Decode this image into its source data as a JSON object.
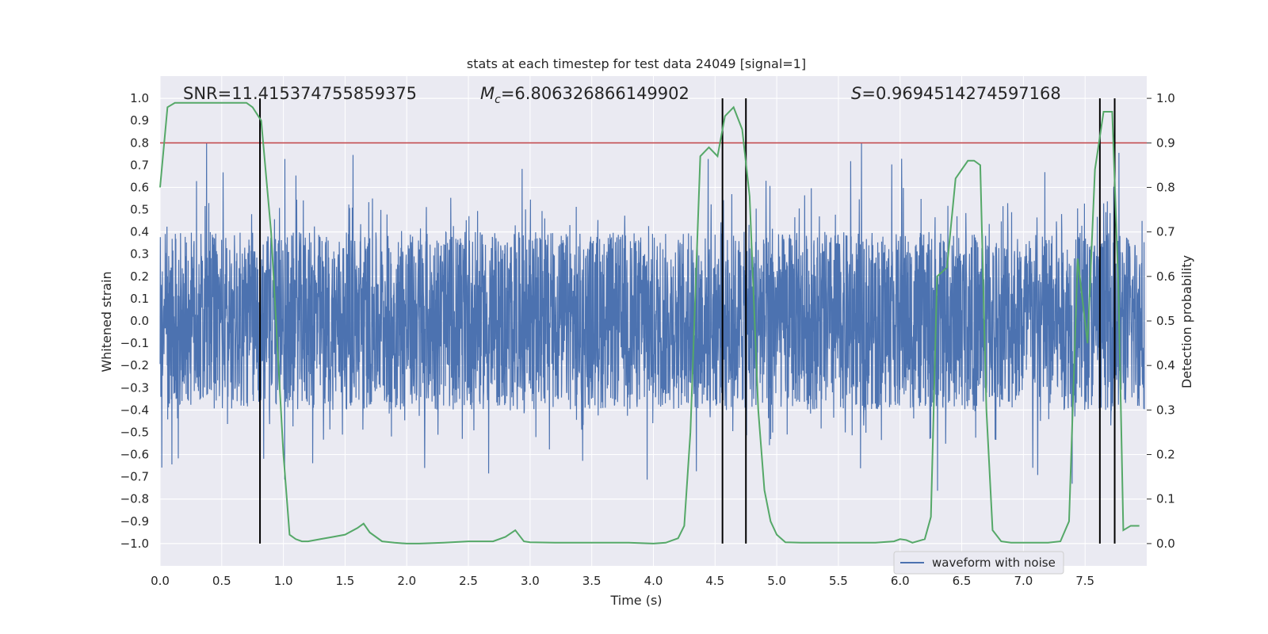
{
  "chart_data": {
    "type": "line",
    "title": "stats at each timestep for test data 24049 [signal=1]",
    "xlabel": "Time (s)",
    "ylabel": "Whitened strain",
    "ylabel_right": "Detection probability",
    "xlim": [
      0.0,
      8.0
    ],
    "ylim": [
      -1.1,
      1.1
    ],
    "ylim_right": [
      -0.05,
      1.05
    ],
    "xticks": [
      "0.0",
      "0.5",
      "1.0",
      "1.5",
      "2.0",
      "2.5",
      "3.0",
      "3.5",
      "4.0",
      "4.5",
      "5.0",
      "5.5",
      "6.0",
      "6.5",
      "7.0",
      "7.5"
    ],
    "yticks": [
      "1.0",
      "0.9",
      "0.8",
      "0.7",
      "0.6",
      "0.5",
      "0.4",
      "0.3",
      "0.2",
      "0.1",
      "0.0",
      "−0.1",
      "−0.2",
      "−0.3",
      "−0.4",
      "−0.5",
      "−0.6",
      "−0.7",
      "−0.8",
      "−0.9",
      "−1.0"
    ],
    "yticks_right": [
      "1.0",
      "0.9",
      "0.8",
      "0.7",
      "0.6",
      "0.5",
      "0.4",
      "0.3",
      "0.2",
      "0.1",
      "0.0"
    ],
    "grid": true,
    "legend": {
      "position": "lower-right",
      "entries": [
        "waveform with noise"
      ]
    },
    "annotations": {
      "snr": "SNR=11.415374755859375",
      "mc_symbol": "M",
      "mc_sub": "c",
      "mc_value": "=6.806326866149902",
      "s_symbol": "S",
      "s_value": "=0.9694514274597168"
    },
    "threshold_right": 0.9,
    "vertical_lines_x": [
      0.81,
      4.56,
      4.75,
      7.62,
      7.74
    ],
    "series": [
      {
        "name": "waveform with noise",
        "color": "#4c72b0",
        "kind": "noise",
        "y_range": [
          -1.0,
          1.0
        ],
        "typical_band": [
          -0.4,
          0.4
        ]
      },
      {
        "kind": "probability",
        "axis": "right",
        "color": "#55a868",
        "x": [
          0.0,
          0.06,
          0.12,
          0.2,
          0.3,
          0.4,
          0.5,
          0.6,
          0.7,
          0.75,
          0.82,
          0.9,
          1.0,
          1.05,
          1.1,
          1.15,
          1.2,
          1.3,
          1.4,
          1.5,
          1.6,
          1.65,
          1.7,
          1.8,
          1.9,
          2.0,
          2.1,
          2.3,
          2.5,
          2.7,
          2.8,
          2.88,
          2.95,
          3.0,
          3.2,
          3.4,
          3.6,
          3.8,
          4.0,
          4.1,
          4.2,
          4.25,
          4.3,
          4.38,
          4.45,
          4.52,
          4.58,
          4.65,
          4.72,
          4.78,
          4.85,
          4.9,
          4.95,
          5.0,
          5.07,
          5.2,
          5.4,
          5.6,
          5.8,
          5.95,
          6.0,
          6.05,
          6.1,
          6.2,
          6.25,
          6.3,
          6.38,
          6.45,
          6.5,
          6.55,
          6.6,
          6.65,
          6.7,
          6.75,
          6.82,
          6.9,
          7.0,
          7.2,
          7.3,
          7.37,
          7.44,
          7.52,
          7.58,
          7.65,
          7.72,
          7.77,
          7.81,
          7.87,
          7.94
        ],
        "y": [
          0.8,
          0.98,
          0.99,
          0.99,
          0.99,
          0.99,
          0.99,
          0.99,
          0.99,
          0.98,
          0.95,
          0.7,
          0.2,
          0.02,
          0.01,
          0.005,
          0.005,
          0.01,
          0.015,
          0.02,
          0.035,
          0.045,
          0.025,
          0.005,
          0.002,
          0.0,
          0.0,
          0.002,
          0.005,
          0.005,
          0.015,
          0.03,
          0.005,
          0.003,
          0.002,
          0.002,
          0.002,
          0.002,
          0.0,
          0.002,
          0.012,
          0.04,
          0.25,
          0.87,
          0.89,
          0.87,
          0.96,
          0.98,
          0.93,
          0.78,
          0.3,
          0.12,
          0.05,
          0.02,
          0.003,
          0.002,
          0.002,
          0.002,
          0.002,
          0.005,
          0.01,
          0.008,
          0.002,
          0.01,
          0.06,
          0.6,
          0.62,
          0.82,
          0.84,
          0.86,
          0.86,
          0.85,
          0.3,
          0.03,
          0.005,
          0.002,
          0.002,
          0.002,
          0.005,
          0.05,
          0.64,
          0.45,
          0.84,
          0.97,
          0.97,
          0.58,
          0.03,
          0.04,
          0.04
        ]
      }
    ]
  }
}
